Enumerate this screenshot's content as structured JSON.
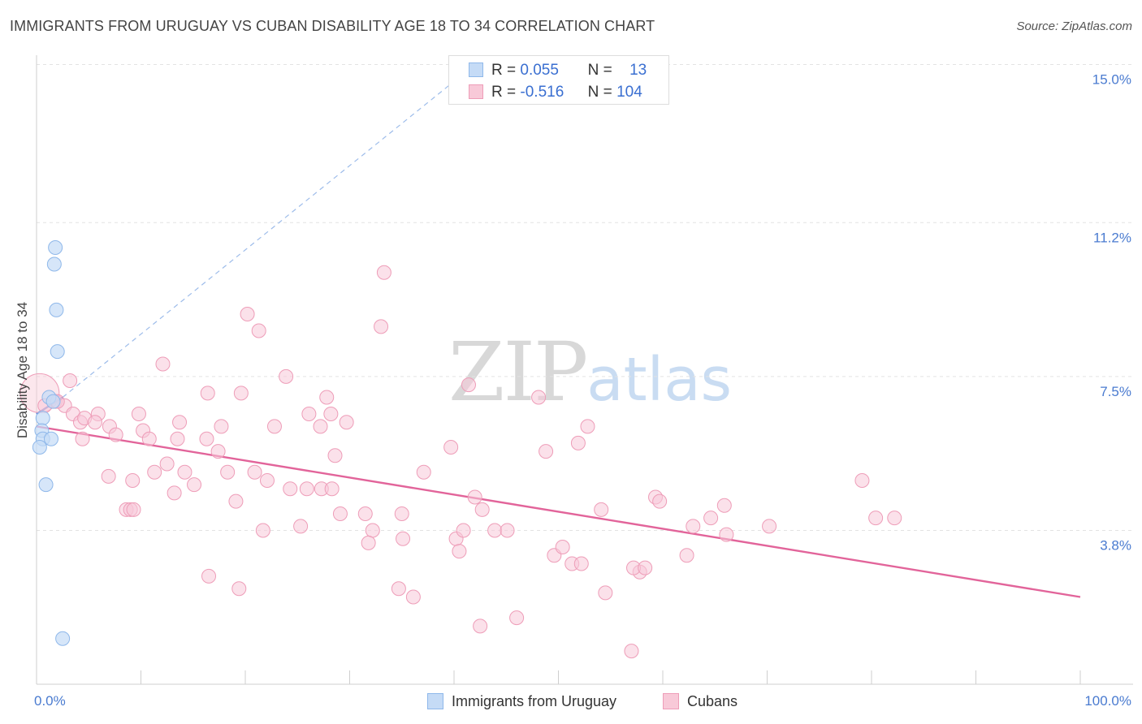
{
  "title": "IMMIGRANTS FROM URUGUAY VS CUBAN DISABILITY AGE 18 TO 34 CORRELATION CHART",
  "source": "Source: ZipAtlas.com",
  "watermark": {
    "zip": "ZIP",
    "atlas": "atlas"
  },
  "colors": {
    "blue": "#8fb8ea",
    "blue_fill": "#c5dbf6",
    "blue_line": "#3f6fd4",
    "pink": "#ee9db8",
    "pink_fill": "#f8c9d8",
    "pink_line": "#e2649a",
    "tick_text": "#4a7bd0",
    "grid": "#e3e3e3"
  },
  "legend": {
    "rows": [
      {
        "name": "uruguay",
        "r_label": "R =",
        "r_value": "0.055",
        "n_label": "N =",
        "n_value": "13"
      },
      {
        "name": "cubans",
        "r_label": "R =",
        "r_value": "-0.516",
        "n_label": "N =",
        "n_value": "104"
      }
    ]
  },
  "chart_data": {
    "type": "scatter",
    "title": "IMMIGRANTS FROM URUGUAY VS CUBAN DISABILITY AGE 18 TO 34 CORRELATION CHART",
    "xlabel": "",
    "ylabel": "Disability Age 18 to 34",
    "xlim": [
      0,
      100
    ],
    "ylim": [
      0,
      16
    ],
    "x_tick_labels": [
      "0.0%",
      "100.0%"
    ],
    "y_ticks": [
      3.8,
      7.5,
      11.2,
      15.0
    ],
    "y_tick_labels": [
      "3.8%",
      "7.5%",
      "11.2%",
      "15.0%"
    ],
    "grid": true,
    "legend_position": "bottom",
    "series": [
      {
        "name": "Immigrants from Uruguay",
        "points": [
          [
            1.8,
            10.6
          ],
          [
            1.7,
            10.2
          ],
          [
            1.9,
            9.1
          ],
          [
            2.0,
            8.1
          ],
          [
            1.2,
            7.0
          ],
          [
            1.6,
            6.9
          ],
          [
            0.6,
            6.5
          ],
          [
            0.5,
            6.2
          ],
          [
            0.6,
            6.0
          ],
          [
            1.4,
            6.0
          ],
          [
            0.3,
            5.8
          ],
          [
            0.9,
            4.9
          ],
          [
            2.5,
            1.2
          ]
        ],
        "trend_solid": [
          [
            0,
            6.6
          ],
          [
            2.5,
            7.0
          ]
        ],
        "trend_dashed": [
          [
            2.5,
            7.0
          ],
          [
            42,
            15.0
          ]
        ]
      },
      {
        "name": "Cubans",
        "points": [
          [
            0.3,
            7.1
          ],
          [
            1.8,
            6.9
          ],
          [
            3.2,
            7.4
          ],
          [
            2.7,
            6.8
          ],
          [
            0.8,
            6.8
          ],
          [
            2.0,
            6.9
          ],
          [
            3.5,
            6.6
          ],
          [
            4.2,
            6.4
          ],
          [
            4.6,
            6.5
          ],
          [
            5.9,
            6.6
          ],
          [
            7.0,
            6.3
          ],
          [
            7.6,
            6.1
          ],
          [
            9.8,
            6.6
          ],
          [
            10.2,
            6.2
          ],
          [
            10.8,
            6.0
          ],
          [
            12.1,
            7.8
          ],
          [
            13.5,
            6.0
          ],
          [
            13.7,
            6.4
          ],
          [
            16.3,
            6.0
          ],
          [
            16.4,
            7.1
          ],
          [
            17.4,
            5.7
          ],
          [
            17.7,
            6.3
          ],
          [
            19.6,
            7.1
          ],
          [
            20.2,
            9.0
          ],
          [
            21.3,
            8.6
          ],
          [
            22.8,
            6.3
          ],
          [
            23.9,
            7.5
          ],
          [
            26.1,
            6.6
          ],
          [
            27.2,
            6.3
          ],
          [
            27.8,
            7.0
          ],
          [
            28.2,
            6.6
          ],
          [
            29.7,
            6.4
          ],
          [
            5.6,
            6.4
          ],
          [
            4.4,
            6.0
          ],
          [
            6.9,
            5.1
          ],
          [
            9.2,
            5.0
          ],
          [
            11.3,
            5.2
          ],
          [
            12.5,
            5.4
          ],
          [
            14.2,
            5.2
          ],
          [
            15.1,
            4.9
          ],
          [
            13.2,
            4.7
          ],
          [
            18.3,
            5.2
          ],
          [
            20.9,
            5.2
          ],
          [
            22.1,
            5.0
          ],
          [
            24.3,
            4.8
          ],
          [
            25.9,
            4.8
          ],
          [
            27.3,
            4.8
          ],
          [
            28.3,
            4.8
          ],
          [
            28.6,
            5.6
          ],
          [
            8.6,
            4.3
          ],
          [
            9.0,
            4.3
          ],
          [
            19.1,
            4.5
          ],
          [
            21.7,
            3.8
          ],
          [
            25.3,
            3.9
          ],
          [
            29.1,
            4.2
          ],
          [
            31.5,
            4.2
          ],
          [
            32.2,
            3.8
          ],
          [
            31.8,
            3.5
          ],
          [
            33.3,
            10.0
          ],
          [
            33.0,
            8.7
          ],
          [
            35.0,
            4.2
          ],
          [
            35.1,
            3.6
          ],
          [
            37.1,
            5.2
          ],
          [
            39.7,
            5.8
          ],
          [
            40.2,
            3.6
          ],
          [
            40.5,
            3.3
          ],
          [
            40.9,
            3.8
          ],
          [
            41.4,
            7.3
          ],
          [
            42.0,
            4.6
          ],
          [
            42.7,
            4.3
          ],
          [
            43.9,
            3.8
          ],
          [
            45.1,
            3.8
          ],
          [
            48.1,
            7.0
          ],
          [
            48.8,
            5.7
          ],
          [
            49.6,
            3.2
          ],
          [
            50.4,
            3.4
          ],
          [
            51.3,
            3.0
          ],
          [
            51.9,
            5.9
          ],
          [
            52.2,
            3.0
          ],
          [
            52.8,
            6.3
          ],
          [
            54.1,
            4.3
          ],
          [
            54.5,
            2.3
          ],
          [
            57.8,
            2.8
          ],
          [
            57.2,
            2.9
          ],
          [
            58.3,
            2.9
          ],
          [
            59.3,
            4.6
          ],
          [
            59.7,
            4.5
          ],
          [
            62.3,
            3.2
          ],
          [
            62.9,
            3.9
          ],
          [
            64.6,
            4.1
          ],
          [
            65.9,
            4.4
          ],
          [
            66.1,
            3.7
          ],
          [
            70.2,
            3.9
          ],
          [
            79.1,
            5.0
          ],
          [
            80.4,
            4.1
          ],
          [
            82.2,
            4.1
          ],
          [
            9.3,
            4.3
          ],
          [
            16.5,
            2.7
          ],
          [
            19.4,
            2.4
          ],
          [
            34.7,
            2.4
          ],
          [
            36.1,
            2.2
          ],
          [
            42.5,
            1.5
          ],
          [
            46.0,
            1.7
          ],
          [
            57.0,
            0.9
          ]
        ],
        "trend_solid": [
          [
            0,
            6.3
          ],
          [
            100,
            2.2
          ]
        ]
      }
    ]
  }
}
